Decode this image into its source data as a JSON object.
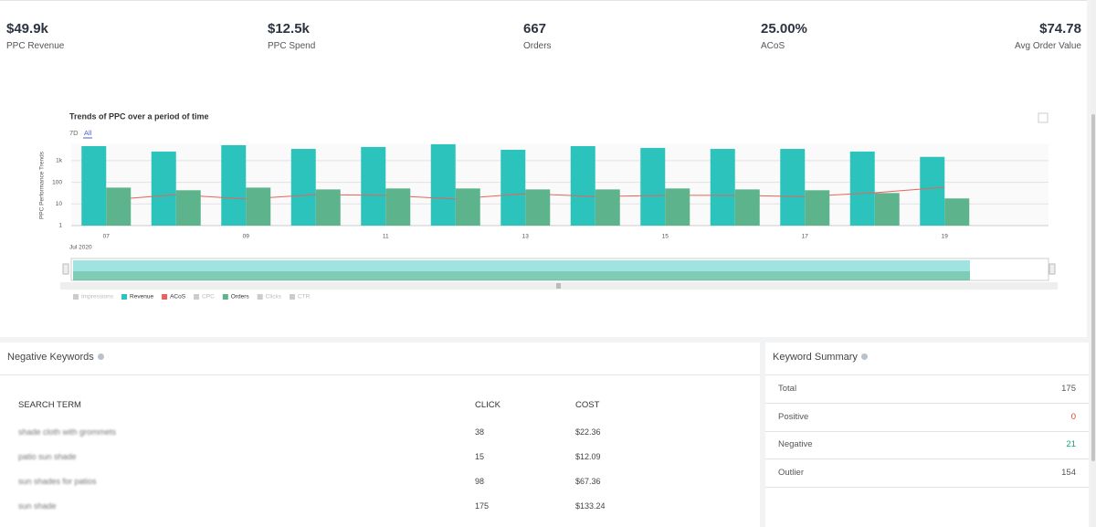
{
  "kpis": [
    {
      "value": "$49.9k",
      "label": "PPC Revenue"
    },
    {
      "value": "$12.5k",
      "label": "PPC Spend"
    },
    {
      "value": "667",
      "label": "Orders"
    },
    {
      "value": "25.00%",
      "label": "ACoS"
    },
    {
      "value": "$74.78",
      "label": "Avg Order Value"
    }
  ],
  "chart_data": {
    "type": "bar",
    "title": "Trends of PPC over a period of time",
    "range_options": [
      "7D",
      "All"
    ],
    "y_label": "PPC Performance Trends",
    "x_period_label": "Jul 2020",
    "log_scale": true,
    "grid": true,
    "legend_position": "bottom",
    "categories": [
      "07",
      null,
      "09",
      null,
      "11",
      null,
      "13",
      null,
      "15",
      null,
      "17",
      null,
      "19"
    ],
    "ylim": [
      1,
      6000
    ],
    "yticks": [
      1,
      10,
      100,
      {
        "value": 1000,
        "label": "1k"
      }
    ],
    "series": [
      {
        "name": "Impressions",
        "color": "#cccccc",
        "visible": false
      },
      {
        "name": "Revenue",
        "color": "#2cc3bc",
        "type": "bar",
        "values": [
          4700,
          2650,
          5200,
          3500,
          4300,
          5750,
          3200,
          4700,
          3900,
          3500,
          3500,
          2650,
          1500
        ]
      },
      {
        "name": "ACoS",
        "color": "#e8635b",
        "type": "line",
        "values": [
          15,
          27,
          17,
          27,
          25,
          17,
          30,
          22,
          25,
          25,
          22,
          33,
          59
        ]
      },
      {
        "name": "CPC",
        "color": "#cccccc",
        "visible": false
      },
      {
        "name": "Orders",
        "color": "#5db38b",
        "type": "bar",
        "values": [
          57,
          43,
          57,
          47,
          52,
          52,
          47,
          47,
          52,
          47,
          43,
          32,
          18
        ]
      },
      {
        "name": "Clicks",
        "color": "#cccccc",
        "visible": false
      },
      {
        "name": "CTR",
        "color": "#cccccc",
        "visible": false
      }
    ]
  },
  "negative_keywords": {
    "title": "Negative Keywords",
    "columns": [
      "SEARCH TERM",
      "CLICK",
      "COST"
    ],
    "rows": [
      [
        "shade cloth with grommets",
        38,
        "$22.36"
      ],
      [
        "patio sun shade",
        15,
        "$12.09"
      ],
      [
        "sun shades for patios",
        98,
        "$67.36"
      ],
      [
        "sun shade",
        175,
        "$133.24"
      ]
    ]
  },
  "keyword_summary": {
    "title": "Keyword Summary",
    "rows": [
      {
        "label": "Total",
        "value": 175
      },
      {
        "label": "Positive",
        "value": 0
      },
      {
        "label": "Negative",
        "value": 21
      },
      {
        "label": "Outlier",
        "value": 154
      }
    ]
  }
}
